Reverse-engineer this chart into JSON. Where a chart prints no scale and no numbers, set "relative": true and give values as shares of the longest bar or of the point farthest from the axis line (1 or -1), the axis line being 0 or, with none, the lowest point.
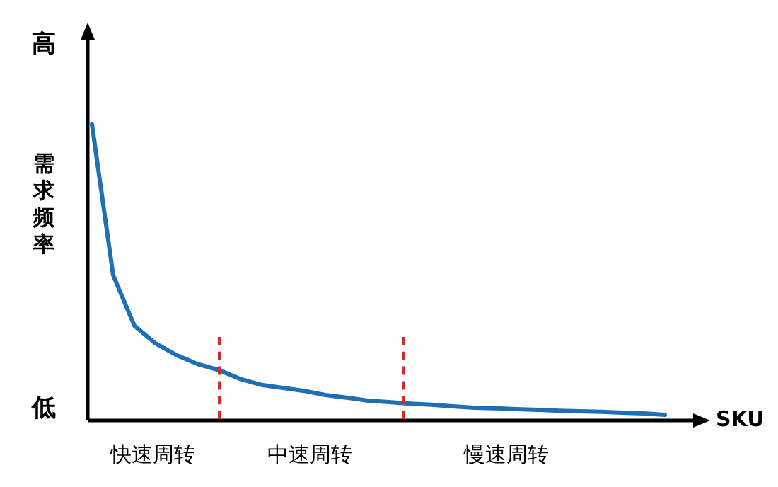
{
  "chart_data": {
    "type": "line",
    "relative": true,
    "xlabel": "SKU",
    "ylabel": "需求频率",
    "annotations": [
      "高",
      "低",
      "快速周转",
      "中速周转",
      "慢速周转"
    ],
    "categories": [
      null,
      null,
      null,
      null,
      null,
      null,
      null,
      null,
      null,
      null,
      null,
      null,
      null,
      null,
      null,
      null,
      null,
      null,
      null,
      null,
      null,
      null,
      null,
      null,
      null,
      null,
      null,
      null
    ],
    "values": [
      1,
      0.49,
      0.32,
      0.26,
      0.22,
      0.19,
      0.17,
      0.14,
      0.12,
      0.11,
      0.1,
      0.086,
      0.077,
      0.067,
      0.062,
      0.057,
      0.053,
      0.048,
      0.043,
      0.041,
      0.038,
      0.036,
      0.033,
      0.031,
      0.029,
      0.026,
      0.024,
      0.019
    ],
    "color": "#1f6fb4"
  }
}
